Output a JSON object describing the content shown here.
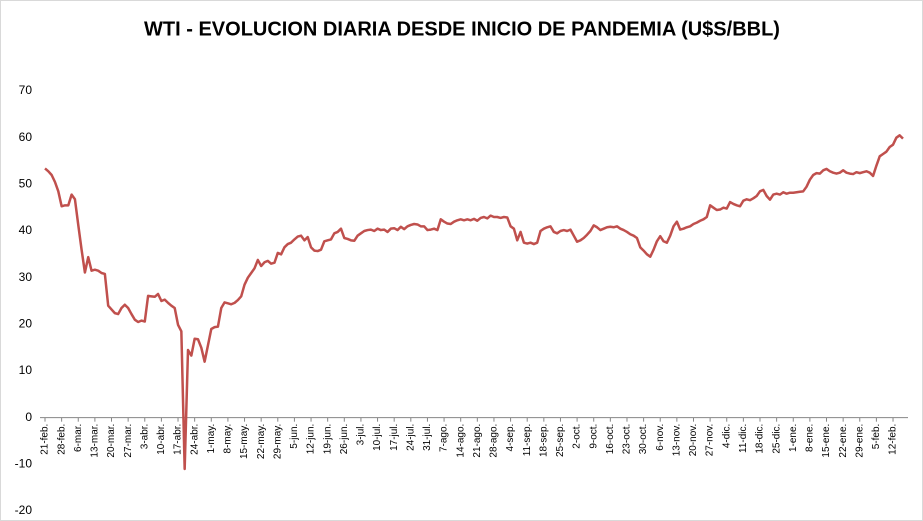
{
  "chart_data": {
    "type": "line",
    "title": "WTI - EVOLUCION DIARIA DESDE INICIO DE PANDEMIA (U$S/BBL)",
    "categories": [
      "21-feb.",
      null,
      null,
      null,
      null,
      "28-feb.",
      null,
      null,
      null,
      null,
      "6-mar.",
      null,
      null,
      null,
      null,
      "13-mar.",
      null,
      null,
      null,
      null,
      "20-mar.",
      null,
      null,
      null,
      null,
      "27-mar.",
      null,
      null,
      null,
      null,
      "3-abr.",
      null,
      null,
      null,
      null,
      "10-abr.",
      null,
      null,
      null,
      null,
      "17-abr.",
      null,
      null,
      null,
      null,
      "24-abr.",
      null,
      null,
      null,
      null,
      "1-may.",
      null,
      null,
      null,
      null,
      "8-may.",
      null,
      null,
      null,
      null,
      "15-may.",
      null,
      null,
      null,
      null,
      "22-may.",
      null,
      null,
      null,
      null,
      "29-may.",
      null,
      null,
      null,
      null,
      "5-jun.",
      null,
      null,
      null,
      null,
      "12-jun.",
      null,
      null,
      null,
      null,
      "19-jun.",
      null,
      null,
      null,
      null,
      "26-jun.",
      null,
      null,
      null,
      null,
      "3-jul.",
      null,
      null,
      null,
      null,
      "10-jul.",
      null,
      null,
      null,
      null,
      "17-jul.",
      null,
      null,
      null,
      null,
      "24-jul.",
      null,
      null,
      null,
      null,
      "31-jul.",
      null,
      null,
      null,
      null,
      "7-ago.",
      null,
      null,
      null,
      null,
      "14-ago.",
      null,
      null,
      null,
      null,
      "21-ago.",
      null,
      null,
      null,
      null,
      "28-ago.",
      null,
      null,
      null,
      null,
      "4-sep.",
      null,
      null,
      null,
      null,
      "11-sep.",
      null,
      null,
      null,
      null,
      "18-sep.",
      null,
      null,
      null,
      null,
      "25-sep.",
      null,
      null,
      null,
      null,
      "2-oct.",
      null,
      null,
      null,
      null,
      "9-oct.",
      null,
      null,
      null,
      null,
      "16-oct.",
      null,
      null,
      null,
      null,
      "23-oct.",
      null,
      null,
      null,
      null,
      "30-oct.",
      null,
      null,
      null,
      null,
      "6-nov.",
      null,
      null,
      null,
      null,
      "13-nov.",
      null,
      null,
      null,
      null,
      "20-nov.",
      null,
      null,
      null,
      null,
      "27-nov.",
      null,
      null,
      null,
      null,
      "4-dic.",
      null,
      null,
      null,
      null,
      "11-dic.",
      null,
      null,
      null,
      null,
      "18-dic.",
      null,
      null,
      null,
      null,
      "25-dic.",
      null,
      null,
      null,
      null,
      "1-ene.",
      null,
      null,
      null,
      null,
      "8-ene.",
      null,
      null,
      null,
      null,
      "15-ene.",
      null,
      null,
      null,
      null,
      "22-ene.",
      null,
      null,
      null,
      null,
      "29-ene.",
      null,
      null,
      null,
      null,
      "5-feb.",
      null,
      null,
      null,
      null,
      "12-feb.",
      null,
      null,
      null
    ],
    "values": [
      53.4,
      52.8,
      52.0,
      50.5,
      48.5,
      45.3,
      45.5,
      45.5,
      47.8,
      46.8,
      41.3,
      36.0,
      31.1,
      34.4,
      31.5,
      31.7,
      31.5,
      31.0,
      30.8,
      24.0,
      23.2,
      22.4,
      22.2,
      23.5,
      24.2,
      23.5,
      22.2,
      21.0,
      20.5,
      20.8,
      20.6,
      26.1,
      26.0,
      25.9,
      26.5,
      25.0,
      25.3,
      24.6,
      24.0,
      23.5,
      19.9,
      18.5,
      -11.0,
      14.5,
      13.3,
      16.9,
      16.8,
      15.0,
      12.0,
      15.5,
      19.0,
      19.4,
      19.5,
      23.5,
      24.7,
      24.5,
      24.3,
      24.6,
      25.2,
      26.0,
      28.5,
      30.0,
      31.0,
      32.0,
      33.8,
      32.5,
      33.3,
      33.6,
      33.0,
      33.2,
      35.3,
      35.0,
      36.5,
      37.2,
      37.5,
      38.2,
      38.8,
      39.0,
      38.0,
      38.7,
      36.5,
      35.8,
      35.7,
      36.0,
      37.8,
      38.0,
      38.2,
      39.5,
      39.8,
      40.5,
      38.5,
      38.3,
      38.0,
      37.9,
      39.0,
      39.5,
      40.0,
      40.2,
      40.3,
      40.0,
      40.5,
      40.2,
      40.3,
      39.8,
      40.5,
      40.6,
      40.2,
      40.9,
      40.4,
      41.0,
      41.3,
      41.5,
      41.4,
      41.0,
      41.0,
      40.2,
      40.3,
      40.5,
      40.2,
      42.5,
      42.0,
      41.6,
      41.5,
      42.0,
      42.3,
      42.5,
      42.3,
      42.5,
      42.3,
      42.6,
      42.2,
      42.8,
      43.0,
      42.7,
      43.3,
      43.0,
      43.0,
      42.8,
      43.0,
      42.9,
      41.0,
      40.5,
      38.0,
      39.8,
      37.5,
      37.3,
      37.5,
      37.2,
      37.5,
      40.0,
      40.5,
      40.8,
      41.0,
      39.8,
      39.5,
      40.0,
      40.2,
      40.0,
      40.3,
      39.0,
      37.7,
      38.0,
      38.5,
      39.2,
      40.0,
      41.2,
      40.8,
      40.2,
      40.5,
      40.8,
      40.9,
      40.8,
      41.0,
      40.5,
      40.2,
      39.8,
      39.3,
      39.0,
      38.5,
      36.5,
      35.8,
      35.0,
      34.5,
      36.0,
      37.8,
      38.9,
      37.8,
      37.5,
      39.0,
      41.0,
      42.0,
      40.3,
      40.5,
      40.8,
      41.0,
      41.5,
      41.8,
      42.2,
      42.5,
      43.0,
      45.5,
      45.0,
      44.5,
      44.6,
      45.0,
      44.8,
      46.2,
      45.8,
      45.5,
      45.3,
      46.5,
      46.8,
      46.6,
      47.0,
      47.5,
      48.5,
      48.8,
      47.5,
      46.7,
      47.8,
      48.0,
      47.8,
      48.3,
      48.0,
      48.2,
      48.2,
      48.3,
      48.4,
      48.5,
      49.5,
      51.0,
      52.0,
      52.4,
      52.3,
      53.0,
      53.3,
      52.8,
      52.5,
      52.3,
      52.5,
      53.0,
      52.5,
      52.3,
      52.2,
      52.6,
      52.4,
      52.6,
      52.8,
      52.5,
      51.8,
      54.0,
      56.0,
      56.5,
      57.0,
      58.0,
      58.5,
      60.0,
      60.5,
      59.8
    ],
    "color": "#c0504d",
    "ylim": [
      -20,
      70
    ],
    "yticks": [
      -20,
      -10,
      0,
      10,
      20,
      30,
      40,
      50,
      60,
      70
    ],
    "grid": false
  }
}
